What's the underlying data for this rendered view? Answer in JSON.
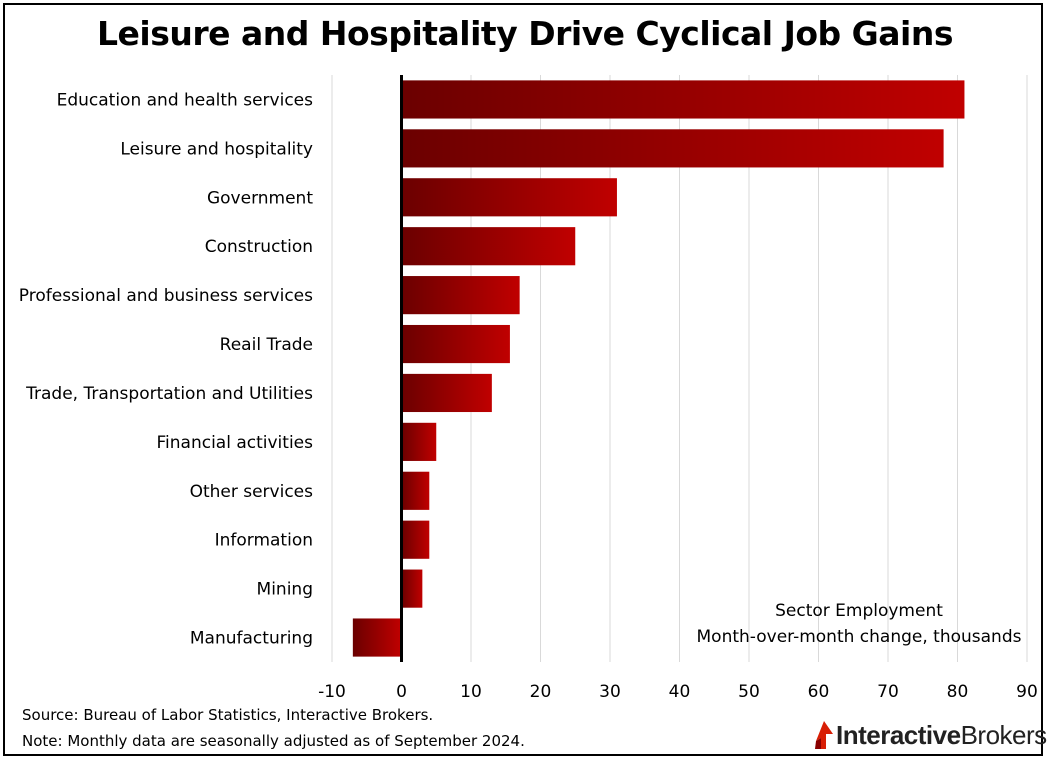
{
  "chart_data": {
    "type": "bar",
    "orientation": "horizontal",
    "title": "Leisure and Hospitality Drive Cyclical Job Gains",
    "categories": [
      "Education and health services",
      "Leisure and hospitality",
      "Government",
      "Construction",
      "Professional and business services",
      "Reail Trade",
      "Trade, Transportation and Utilities",
      "Financial activities",
      "Other services",
      "Information",
      "Mining",
      "Manufacturing"
    ],
    "values": [
      81,
      78,
      31,
      25,
      17,
      15.6,
      13,
      5,
      4,
      4,
      3,
      -7
    ],
    "xlim": [
      -10,
      90
    ],
    "xticks": [
      -10,
      0,
      10,
      20,
      30,
      40,
      50,
      60,
      70,
      80,
      90
    ],
    "grid": "vertical",
    "annotation": [
      "Sector Employment",
      "Month-over-month change, thousands"
    ],
    "bar_color": "#c00000",
    "bar_color_dark": "#6b0000"
  },
  "footer": {
    "source": "Source: Bureau of Labor Statistics, Interactive Brokers.",
    "note": "Note: Monthly data are seasonally adjusted as of September 2024."
  },
  "logo": {
    "part1": "Interactive",
    "part2": "Brokers"
  }
}
